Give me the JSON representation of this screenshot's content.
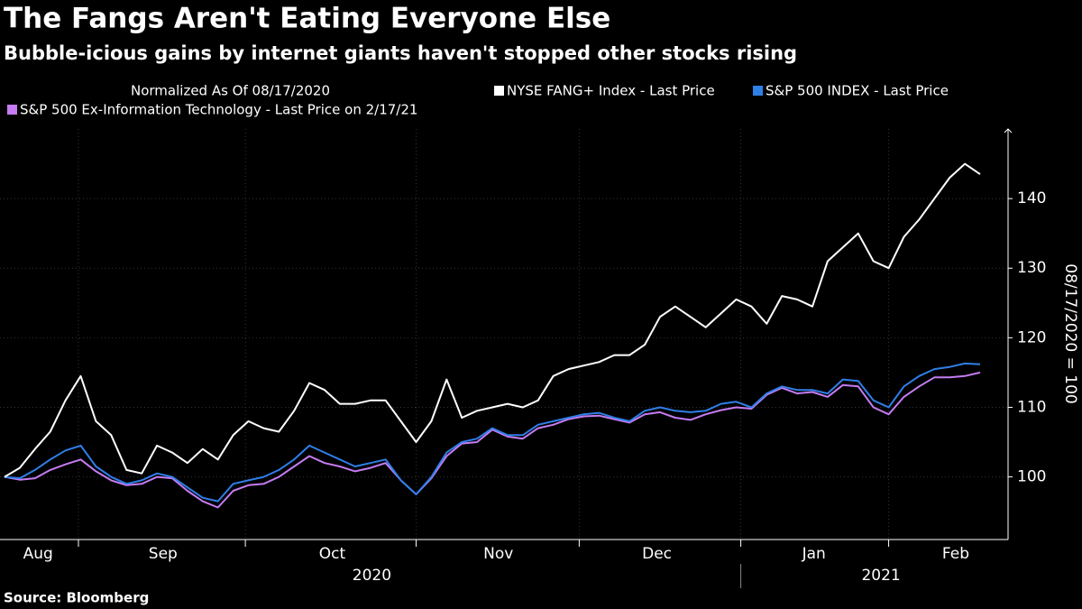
{
  "chart_data": {
    "type": "line",
    "title": "The Fangs Aren't Eating Everyone Else",
    "subtitle": "Bubble-icious gains by internet giants haven't stopped other stocks rising",
    "legend_title": "Normalized As Of 08/17/2020",
    "y_axis_label": "08/17/2020 = 100",
    "source": "Source: Bloomberg",
    "x": [
      0,
      1,
      2,
      3,
      4,
      5,
      6,
      7,
      8,
      9,
      10,
      11,
      12,
      13,
      14,
      15,
      16,
      17,
      18,
      19,
      20,
      21,
      22,
      23,
      24,
      25,
      26,
      27,
      28,
      29,
      30,
      31,
      32,
      33,
      34,
      35,
      36,
      37,
      38,
      39,
      40,
      41,
      42,
      43,
      44,
      45,
      46,
      47,
      48,
      49,
      50,
      51,
      52,
      53,
      54,
      55,
      56,
      57,
      58,
      59,
      60,
      61,
      62,
      63,
      64
    ],
    "xlim": [
      0,
      64
    ],
    "month_labels": [
      {
        "value": 2.2,
        "label": "Aug"
      },
      {
        "value": 10.4,
        "label": "Sep"
      },
      {
        "value": 21.5,
        "label": "Oct"
      },
      {
        "value": 32.4,
        "label": "Nov"
      },
      {
        "value": 42.8,
        "label": "Dec"
      },
      {
        "value": 53.1,
        "label": "Jan"
      },
      {
        "value": 62.4,
        "label": "Feb"
      }
    ],
    "month_boundaries": [
      4.85,
      15.8,
      27,
      37.7,
      48.3,
      58
    ],
    "year_labels": [
      {
        "value": 24.1,
        "label": "2020"
      },
      {
        "value": 57.5,
        "label": "2021"
      }
    ],
    "year_boundaries": [
      48.3
    ],
    "ylim": [
      91,
      150
    ],
    "yticks": [
      100,
      110,
      120,
      130,
      140
    ],
    "series": [
      {
        "name": "NYSE FANG+ Index - Last Price",
        "color": "#ffffff",
        "values": [
          100,
          101.3,
          104,
          106.5,
          111,
          114.5,
          108,
          106,
          101,
          100.5,
          104.5,
          103.5,
          102,
          104,
          102.5,
          106,
          108,
          107,
          106.5,
          109.5,
          113.5,
          112.5,
          110.5,
          110.5,
          111,
          111,
          108,
          105,
          108,
          114,
          108.5,
          109.5,
          110,
          110.5,
          110,
          111,
          114.5,
          115.5,
          116,
          116.5,
          117.5,
          117.5,
          119,
          123,
          124.5,
          123,
          121.5,
          123.5,
          125.5,
          124.5,
          122,
          126,
          125.5,
          124.5,
          131,
          133,
          135,
          131,
          130,
          134.5,
          137,
          140,
          143,
          145,
          143.5
        ]
      },
      {
        "name": "S&P 500 INDEX - Last Price",
        "color": "#2f7fe8",
        "values": [
          100,
          99.8,
          101,
          102.5,
          103.8,
          104.5,
          101.5,
          100,
          99,
          99.5,
          100.5,
          100,
          98.5,
          97,
          96.5,
          99,
          99.5,
          100,
          101,
          102.5,
          104.5,
          103.5,
          102.5,
          101.5,
          102,
          102.5,
          99.5,
          97.5,
          100,
          103.5,
          105,
          105.5,
          107,
          106,
          106,
          107.5,
          108,
          108.5,
          109,
          109.2,
          108.5,
          108,
          109.5,
          110,
          109.5,
          109.3,
          109.5,
          110.5,
          110.8,
          110,
          112,
          113,
          112.5,
          112.5,
          112,
          114,
          113.8,
          111,
          110,
          113,
          114.5,
          115.5,
          115.8,
          116.3,
          116.2
        ]
      },
      {
        "name": "S&P 500 Ex-Information Technology - Last Price on 2/17/21",
        "color": "#c57cf2",
        "values": [
          100,
          99.6,
          99.8,
          101,
          101.8,
          102.5,
          100.8,
          99.5,
          98.8,
          99,
          100,
          99.8,
          98,
          96.5,
          95.6,
          98,
          98.8,
          99,
          100,
          101.5,
          103,
          102,
          101.5,
          100.8,
          101.3,
          102,
          99.5,
          97.5,
          99.8,
          103,
          104.8,
          105,
          106.8,
          105.8,
          105.5,
          107,
          107.5,
          108.3,
          108.7,
          108.8,
          108.3,
          107.8,
          109,
          109.3,
          108.5,
          108.2,
          109,
          109.6,
          110,
          109.8,
          111.8,
          112.8,
          112,
          112.2,
          111.5,
          113.2,
          113,
          110,
          109,
          111.5,
          113,
          114.3,
          114.3,
          114.5,
          115
        ]
      }
    ]
  }
}
